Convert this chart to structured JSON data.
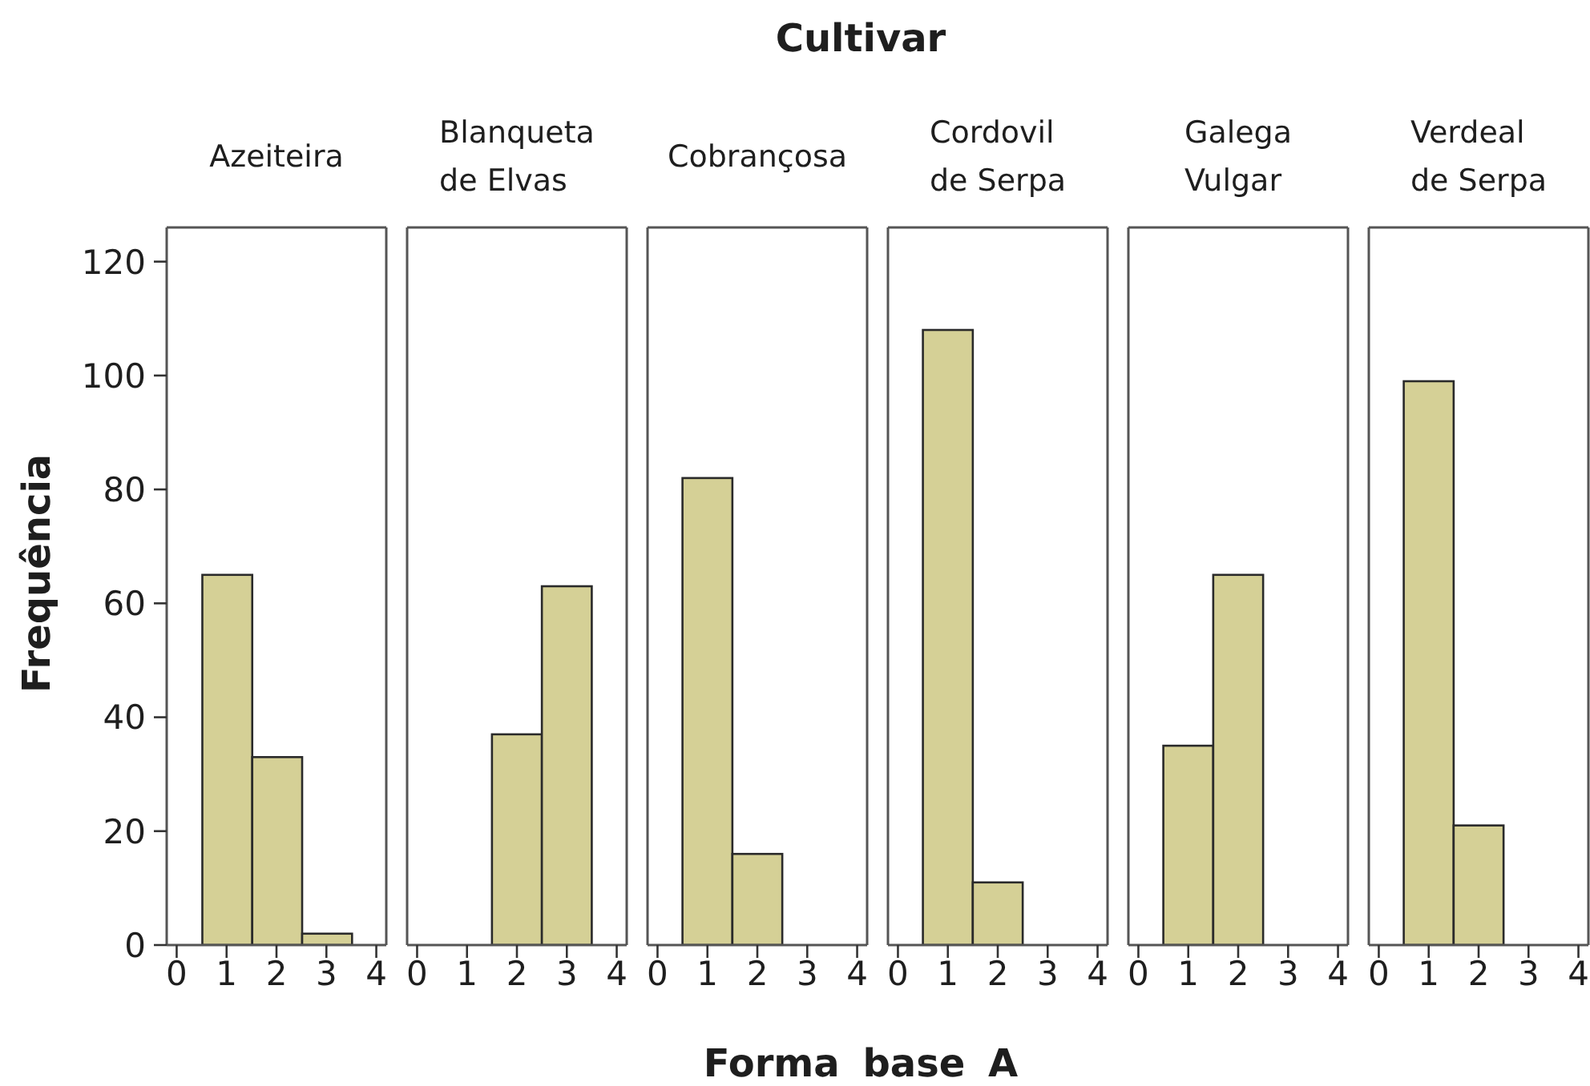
{
  "chart_data": [
    {
      "type": "histogram",
      "title": "Azeiteira",
      "ylabel": "Frequência",
      "bins": [
        0.5,
        1.5,
        2.5,
        3.5
      ],
      "values": [
        65,
        33,
        2
      ],
      "color": "#d5d096",
      "xlim": [
        -0.2,
        4.2
      ],
      "xticks": [
        0,
        1,
        2,
        3,
        4
      ],
      "ylim": [
        0,
        126
      ],
      "yticks": [
        0,
        20,
        40,
        60,
        80,
        100,
        120
      ]
    },
    {
      "type": "histogram",
      "title": "Blanqueta de Elvas",
      "bins": [
        1.5,
        2.5,
        3.5
      ],
      "values": [
        37,
        63
      ],
      "color": "#d5d096",
      "xlim": [
        -0.2,
        4.2
      ],
      "xticks": [
        0,
        1,
        2,
        3,
        4
      ],
      "ylim": [
        0,
        126
      ],
      "yticks": [
        0,
        20,
        40,
        60,
        80,
        100,
        120
      ],
      "tick_labels": "x"
    },
    {
      "type": "histogram",
      "title": "Cobrançosa",
      "annotations": [
        "Cultivar"
      ],
      "xlabel": "Forma base A",
      "bins": [
        0.5,
        1.5,
        2.5
      ],
      "values": [
        82,
        16
      ],
      "color": "#d5d096",
      "xlim": [
        -0.2,
        4.2
      ],
      "xticks": [
        0,
        1,
        2,
        3,
        4
      ],
      "ylim": [
        0,
        126
      ],
      "yticks": [
        0,
        20,
        40,
        60,
        80,
        100,
        120
      ],
      "tick_labels": "x"
    },
    {
      "type": "histogram",
      "title": "Cordovil de Serpa",
      "bins": [
        0.5,
        1.5,
        2.5
      ],
      "values": [
        108,
        11
      ],
      "color": "#d5d096",
      "xlim": [
        -0.2,
        4.2
      ],
      "xticks": [
        0,
        1,
        2,
        3,
        4
      ],
      "ylim": [
        0,
        126
      ],
      "yticks": [
        0,
        20,
        40,
        60,
        80,
        100,
        120
      ],
      "tick_labels": "x"
    },
    {
      "type": "histogram",
      "title": "Galega Vulgar",
      "bins": [
        0.5,
        1.5,
        2.5
      ],
      "values": [
        35,
        65
      ],
      "color": "#d5d096",
      "xlim": [
        -0.2,
        4.2
      ],
      "xticks": [
        0,
        1,
        2,
        3,
        4
      ],
      "ylim": [
        0,
        126
      ],
      "yticks": [
        0,
        20,
        40,
        60,
        80,
        100,
        120
      ],
      "tick_labels": "x"
    },
    {
      "type": "histogram",
      "title": "Verdeal de Serpa",
      "bins": [
        0.5,
        1.5,
        2.5
      ],
      "values": [
        99,
        21
      ],
      "color": "#d5d096",
      "xlim": [
        -0.2,
        4.2
      ],
      "xticks": [
        0,
        1,
        2,
        3,
        4
      ],
      "ylim": [
        0,
        126
      ],
      "yticks": [
        0,
        20,
        40,
        60,
        80,
        100,
        120
      ],
      "tick_labels": "x"
    }
  ]
}
